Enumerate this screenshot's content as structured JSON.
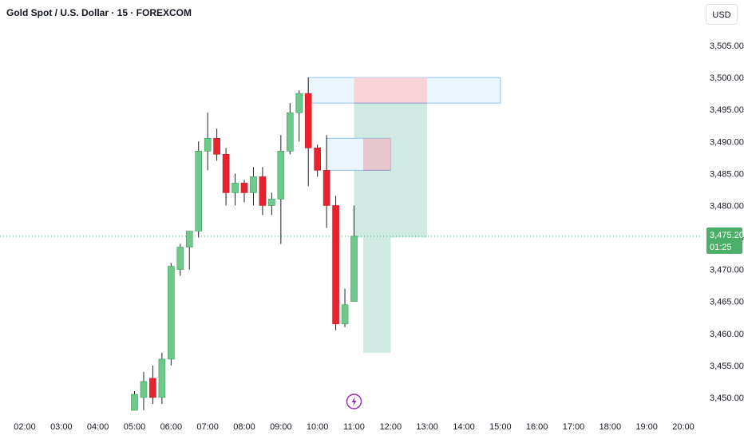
{
  "header": {
    "title": "Gold Spot / U.S. Dollar · 15 · FOREXCOM",
    "currency": "USD"
  },
  "colors": {
    "up": "#6fc98a",
    "down": "#e8232f",
    "last_price_tag": "#4caf67",
    "marker": "#9c27b0",
    "stop_zone": "#f6d3d7",
    "target_zone": "#cfeae3",
    "outline_box": "#eaf5fc",
    "outline_border": "#90c2e8"
  },
  "last_price": {
    "value": "3,475.20",
    "countdown": "01:25",
    "level": 3475.2
  },
  "event_marker": {
    "icon": "lightning-icon",
    "time": "11:00"
  },
  "chart_data": {
    "type": "candlestick",
    "title": "Gold Spot / U.S. Dollar · 15 · FOREXCOM",
    "interval": "15",
    "ylim": [
      3448.5,
      3507.5
    ],
    "y_ticks": [
      "3,505.00",
      "3,500.00",
      "3,495.00",
      "3,490.00",
      "3,485.00",
      "3,480.00",
      "3,475.00",
      "3,470.00",
      "3,465.00",
      "3,460.00",
      "3,455.00",
      "3,450.00"
    ],
    "y_tick_values": [
      3505,
      3500,
      3495,
      3490,
      3485,
      3480,
      3475,
      3470,
      3465,
      3460,
      3455,
      3450
    ],
    "x_ticks": [
      "02:00",
      "03:00",
      "04:00",
      "05:00",
      "06:00",
      "07:00",
      "08:00",
      "09:00",
      "10:00",
      "11:00",
      "12:00",
      "13:00",
      "14:00",
      "15:00",
      "16:00",
      "17:00",
      "18:00",
      "19:00",
      "20:00"
    ],
    "x_tick_hours": [
      2,
      3,
      4,
      5,
      6,
      7,
      8,
      9,
      10,
      11,
      12,
      13,
      14,
      15,
      16,
      17,
      18,
      19,
      20
    ],
    "candles": [
      {
        "t": 5.0,
        "o": 3448.0,
        "h": 3451.0,
        "l": 3448.0,
        "c": 3450.5
      },
      {
        "t": 5.25,
        "o": 3450.0,
        "h": 3454.0,
        "l": 3448.0,
        "c": 3452.5
      },
      {
        "t": 5.5,
        "o": 3453.0,
        "h": 3455.0,
        "l": 3449.0,
        "c": 3450.0
      },
      {
        "t": 5.75,
        "o": 3450.0,
        "h": 3457.0,
        "l": 3449.0,
        "c": 3456.0
      },
      {
        "t": 6.0,
        "o": 3456.0,
        "h": 3471.0,
        "l": 3455.0,
        "c": 3470.5
      },
      {
        "t": 6.25,
        "o": 3470.0,
        "h": 3474.0,
        "l": 3469.0,
        "c": 3473.5
      },
      {
        "t": 6.5,
        "o": 3473.5,
        "h": 3476.0,
        "l": 3470.0,
        "c": 3476.0
      },
      {
        "t": 6.75,
        "o": 3476.0,
        "h": 3490.0,
        "l": 3475.0,
        "c": 3488.5
      },
      {
        "t": 7.0,
        "o": 3488.5,
        "h": 3494.5,
        "l": 3485.5,
        "c": 3490.5
      },
      {
        "t": 7.25,
        "o": 3490.5,
        "h": 3492.0,
        "l": 3487.0,
        "c": 3488.0
      },
      {
        "t": 7.5,
        "o": 3488.0,
        "h": 3489.0,
        "l": 3480.0,
        "c": 3482.0
      },
      {
        "t": 7.75,
        "o": 3482.0,
        "h": 3485.0,
        "l": 3480.0,
        "c": 3483.5
      },
      {
        "t": 8.0,
        "o": 3483.5,
        "h": 3484.0,
        "l": 3480.5,
        "c": 3482.0
      },
      {
        "t": 8.25,
        "o": 3482.0,
        "h": 3486.0,
        "l": 3480.0,
        "c": 3484.5
      },
      {
        "t": 8.5,
        "o": 3484.5,
        "h": 3486.0,
        "l": 3478.5,
        "c": 3480.0
      },
      {
        "t": 8.75,
        "o": 3480.0,
        "h": 3482.0,
        "l": 3478.5,
        "c": 3481.0
      },
      {
        "t": 9.0,
        "o": 3481.0,
        "h": 3491.0,
        "l": 3474.0,
        "c": 3488.5
      },
      {
        "t": 9.25,
        "o": 3488.5,
        "h": 3496.0,
        "l": 3488.0,
        "c": 3494.5
      },
      {
        "t": 9.5,
        "o": 3494.5,
        "h": 3498.0,
        "l": 3490.0,
        "c": 3497.5
      },
      {
        "t": 9.75,
        "o": 3497.5,
        "h": 3500.0,
        "l": 3483.0,
        "c": 3489.0
      },
      {
        "t": 10.0,
        "o": 3489.0,
        "h": 3489.5,
        "l": 3484.5,
        "c": 3485.5
      },
      {
        "t": 10.25,
        "o": 3485.5,
        "h": 3491.0,
        "l": 3476.5,
        "c": 3480.0
      },
      {
        "t": 10.5,
        "o": 3480.0,
        "h": 3481.5,
        "l": 3460.5,
        "c": 3461.5
      },
      {
        "t": 10.75,
        "o": 3461.5,
        "h": 3467.0,
        "l": 3461.0,
        "c": 3464.5
      },
      {
        "t": 11.0,
        "o": 3465.0,
        "h": 3480.0,
        "l": 3465.0,
        "c": 3475.2
      }
    ],
    "drawings": {
      "stop_zone": {
        "t0": 11.0,
        "t1": 13.0,
        "p_top": 3500.0,
        "p_bottom": 3496.0
      },
      "target_zone": {
        "t0": 11.0,
        "t1": 13.0,
        "p_top": 3496.0,
        "p_bottom": 3475.0
      },
      "upper_outline_box": {
        "t0": 9.75,
        "t1": 15.0,
        "p_top": 3500.0,
        "p_bottom": 3496.0
      },
      "inner_stop_zone": {
        "t0": 11.25,
        "t1": 12.0,
        "p_top": 3490.5,
        "p_bottom": 3485.5
      },
      "inner_target_zone": {
        "t0": 11.25,
        "t1": 12.0,
        "p_top": 3485.5,
        "p_bottom": 3457.0
      },
      "inner_outline_box": {
        "t0": 10.25,
        "t1": 12.0,
        "p_top": 3490.5,
        "p_bottom": 3485.5
      }
    }
  }
}
